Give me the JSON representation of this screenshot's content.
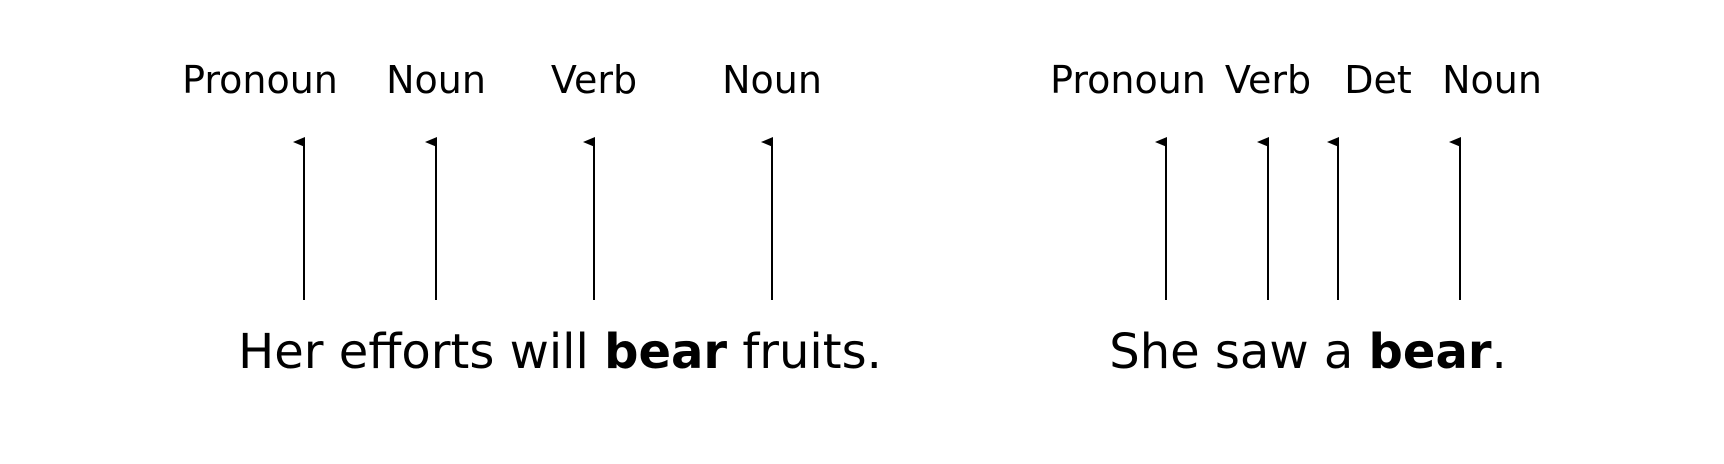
{
  "examples": [
    {
      "tags": [
        "Pronoun",
        "Noun",
        "Verb",
        "Noun"
      ],
      "sentence": {
        "before": "Her efforts will ",
        "bold": "bear",
        "after": " fruits."
      }
    },
    {
      "tags": [
        "Pronoun",
        "Verb",
        "Det",
        "Noun"
      ],
      "sentence": {
        "before": "She saw a ",
        "bold": "bear",
        "after": "."
      }
    }
  ]
}
